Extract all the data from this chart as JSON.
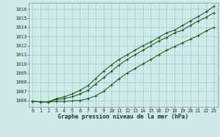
{
  "title": "Graphe pression niveau de la mer (hPa)",
  "xlabel_hours": [
    0,
    1,
    2,
    3,
    4,
    5,
    6,
    7,
    8,
    9,
    10,
    11,
    12,
    13,
    14,
    15,
    16,
    17,
    18,
    19,
    20,
    21,
    22,
    23
  ],
  "ylim": [
    1005.3,
    1016.7
  ],
  "yticks": [
    1006,
    1007,
    1008,
    1009,
    1010,
    1011,
    1012,
    1013,
    1014,
    1015,
    1016
  ],
  "bg_color": "#ceeaea",
  "grid_color": "#a8cccc",
  "line_color": "#1a5c1a",
  "line_low": [
    1005.9,
    1005.85,
    1005.85,
    1005.9,
    1005.9,
    1005.95,
    1006.0,
    1006.2,
    1006.5,
    1007.0,
    1007.7,
    1008.4,
    1009.0,
    1009.5,
    1010.0,
    1010.5,
    1011.0,
    1011.5,
    1011.9,
    1012.3,
    1012.7,
    1013.1,
    1013.6,
    1014.0
  ],
  "line_mid": [
    1005.9,
    1005.85,
    1005.85,
    1006.1,
    1006.2,
    1006.4,
    1006.7,
    1007.1,
    1007.8,
    1008.5,
    1009.2,
    1009.9,
    1010.5,
    1011.0,
    1011.5,
    1012.0,
    1012.5,
    1012.9,
    1013.4,
    1013.7,
    1014.2,
    1014.7,
    1015.1,
    1015.6
  ],
  "line_high": [
    1005.9,
    1005.85,
    1005.85,
    1006.2,
    1006.4,
    1006.7,
    1007.1,
    1007.6,
    1008.4,
    1009.2,
    1009.9,
    1010.5,
    1011.0,
    1011.5,
    1012.0,
    1012.4,
    1012.9,
    1013.4,
    1013.7,
    1014.2,
    1014.7,
    1015.2,
    1015.7,
    1016.3
  ],
  "marker": "+",
  "marker_size": 3.5,
  "linewidth": 0.8
}
